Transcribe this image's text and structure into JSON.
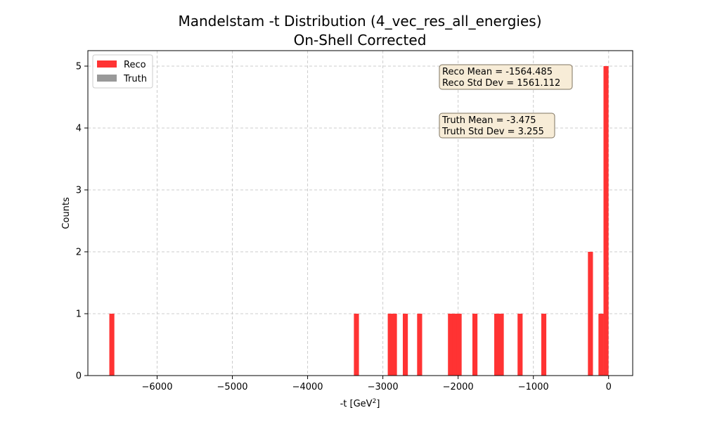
{
  "chart_data": {
    "type": "bar",
    "title_line1": "Mandelstam -t Distribution (4_vec_res_all_energies)",
    "title_line2": "On-Shell Corrected",
    "xlabel_main": "-t [GeV",
    "xlabel_sup": "2",
    "xlabel_end": "]",
    "ylabel": "Counts",
    "xlim": [
      -6920,
      320
    ],
    "ylim": [
      0,
      5.25
    ],
    "xticks": [
      -6000,
      -5000,
      -4000,
      -3000,
      -2000,
      -1000,
      0
    ],
    "xtick_labels": [
      "−6000",
      "−5000",
      "−4000",
      "−3000",
      "−2000",
      "−1000",
      "0"
    ],
    "yticks": [
      0,
      1,
      2,
      3,
      4,
      5
    ],
    "ytick_labels": [
      "0",
      "1",
      "2",
      "3",
      "4",
      "5"
    ],
    "grid": true,
    "legend_position": "top-left",
    "colors": {
      "reco": "#ff3333",
      "truth": "#999999",
      "statbox_fill": "#f7ecd7",
      "statbox_edge": "#7f7460",
      "grid": "#cccccc"
    },
    "series": [
      {
        "name": "Reco",
        "bin_width": 67,
        "bins": [
          {
            "x0": -6635,
            "count": 1
          },
          {
            "x0": -3385,
            "count": 1
          },
          {
            "x0": -2935,
            "count": 1
          },
          {
            "x0": -2880,
            "count": 1
          },
          {
            "x0": -2735,
            "count": 1
          },
          {
            "x0": -2545,
            "count": 1
          },
          {
            "x0": -2135,
            "count": 1
          },
          {
            "x0": -2080,
            "count": 1
          },
          {
            "x0": -2020,
            "count": 1
          },
          {
            "x0": -1810,
            "count": 1
          },
          {
            "x0": -1520,
            "count": 1
          },
          {
            "x0": -1460,
            "count": 1
          },
          {
            "x0": -1210,
            "count": 1
          },
          {
            "x0": -895,
            "count": 1
          },
          {
            "x0": -275,
            "count": 2
          },
          {
            "x0": -135,
            "count": 1
          },
          {
            "x0": -68,
            "count": 5
          }
        ]
      },
      {
        "name": "Truth",
        "bin_width": 67,
        "bins": []
      }
    ],
    "annotations": [
      {
        "line1": "Reco Mean = -1564.485",
        "line2": "Reco Std Dev = 1561.112"
      },
      {
        "line1": "Truth Mean = -3.475",
        "line2": "Truth Std Dev = 3.255"
      }
    ]
  }
}
